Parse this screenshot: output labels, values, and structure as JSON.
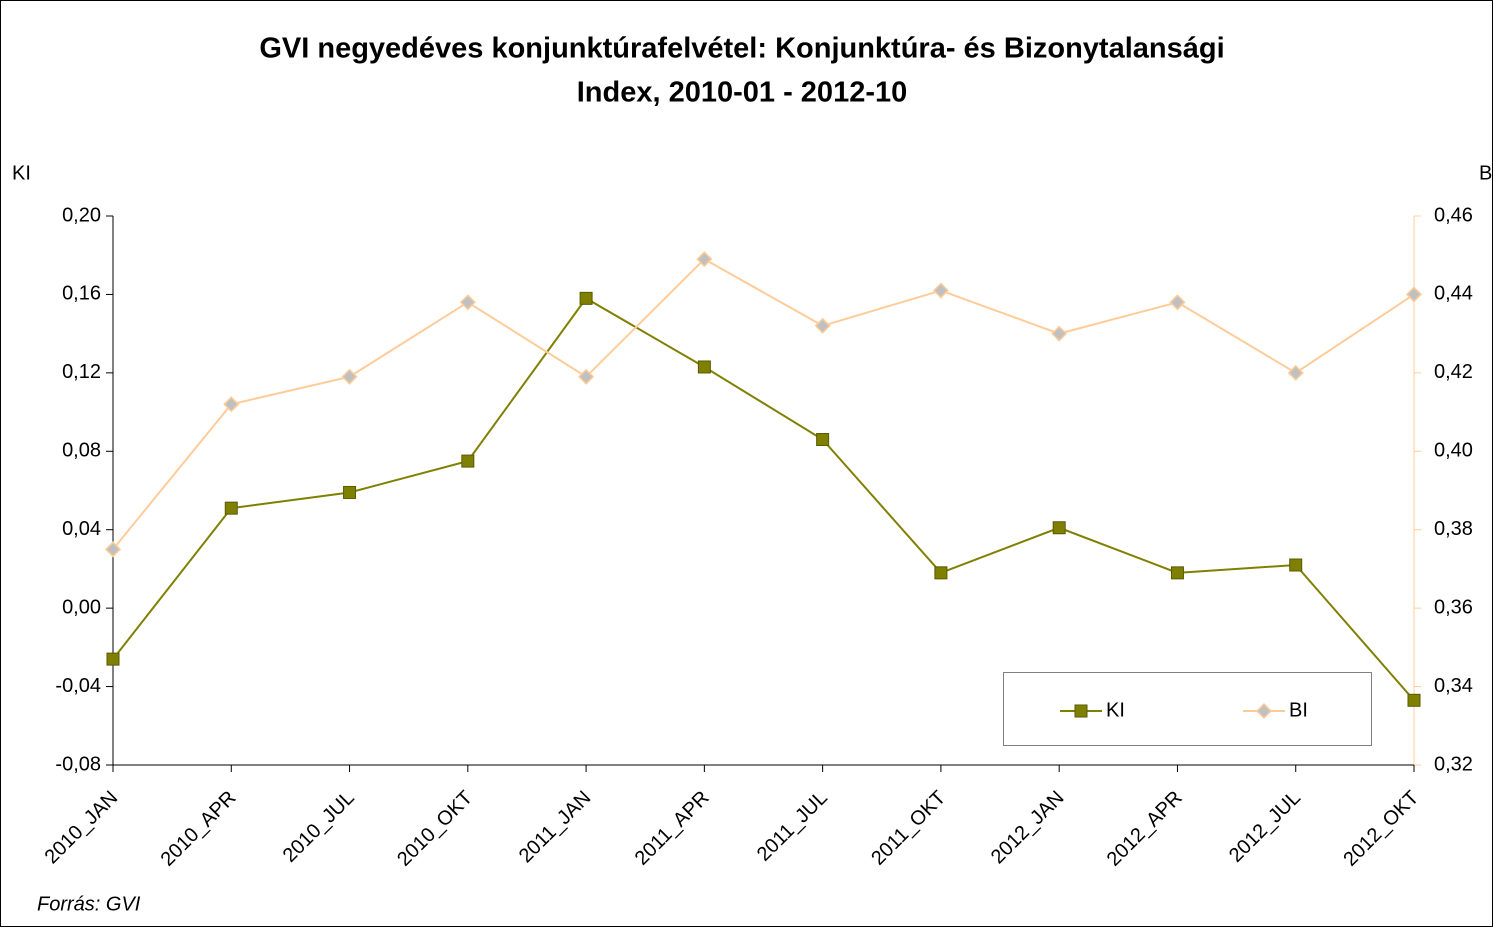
{
  "chart_data": {
    "type": "line",
    "title": [
      "GVI negyedéves konjunktúrafelvétel: Konjunktúra- és Bizonytalansági",
      "Index, 2010-01 - 2012-10"
    ],
    "ylabel": "KI",
    "y2label": "BI",
    "source": "Forrás: GVI",
    "categories": [
      "2010_JAN",
      "2010_APR",
      "2010_JUL",
      "2010_OKT",
      "2011_JAN",
      "2011_APR",
      "2011_JUL",
      "2011_OKT",
      "2012_JAN",
      "2012_APR",
      "2012_JUL",
      "2012_OKT"
    ],
    "series": [
      {
        "name": "KI",
        "color": "#808000",
        "values": [
          -0.026,
          0.051,
          0.059,
          0.075,
          0.158,
          0.123,
          0.086,
          0.018,
          0.041,
          0.018,
          0.022,
          -0.047
        ]
      },
      {
        "name": "BI",
        "color": "#ffcc99",
        "axis": "y2",
        "values": [
          0.375,
          0.412,
          0.419,
          0.438,
          0.419,
          0.449,
          0.432,
          0.441,
          0.43,
          0.438,
          0.42,
          0.44
        ]
      }
    ],
    "ylim": [
      -0.08,
      0.2
    ],
    "yticks": [
      {
        "value": -0.08,
        "label": "-0,08"
      },
      {
        "value": -0.04,
        "label": "-0,04"
      },
      {
        "value": 0,
        "label": "0,00"
      },
      {
        "value": 0.04,
        "label": "0,04"
      },
      {
        "value": 0.08,
        "label": "0,08"
      },
      {
        "value": 0.12,
        "label": "0,12"
      },
      {
        "value": 0.16,
        "label": "0,16"
      },
      {
        "value": 0.2,
        "label": "0,20"
      }
    ],
    "y2lim": [
      0.32,
      0.46
    ],
    "y2ticks": [
      {
        "value": 0.32,
        "label": "0,32"
      },
      {
        "value": 0.34,
        "label": "0,34"
      },
      {
        "value": 0.36,
        "label": "0,36"
      },
      {
        "value": 0.38,
        "label": "0,38"
      },
      {
        "value": 0.4,
        "label": "0,40"
      },
      {
        "value": 0.42,
        "label": "0,42"
      },
      {
        "value": 0.44,
        "label": "0,44"
      },
      {
        "value": 0.46,
        "label": "0,46"
      }
    ],
    "grid": false,
    "legend": "lower right"
  }
}
